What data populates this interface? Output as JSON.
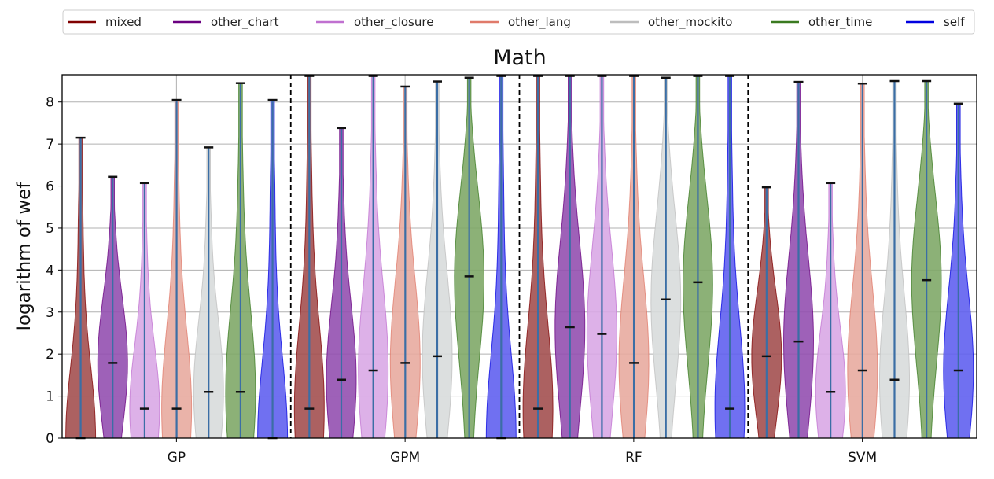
{
  "chart_data": {
    "type": "violin",
    "title": "Math",
    "xlabel": "",
    "ylabel": "logarithm of wef",
    "ylim": [
      0,
      8.65
    ],
    "yticks": [
      0,
      1,
      2,
      3,
      4,
      5,
      6,
      7,
      8
    ],
    "grid": true,
    "legend_position": "top",
    "groups": [
      "GP",
      "GPM",
      "RF",
      "SVM"
    ],
    "series": [
      {
        "name": "mixed",
        "color": "#800000",
        "fill": "#a35050",
        "max": [
          7.15,
          8.62,
          8.62,
          5.97
        ],
        "median": [
          0.0,
          0.7,
          0.7,
          1.95
        ]
      },
      {
        "name": "other_chart",
        "color": "#6a0080",
        "fill": "#9450b0",
        "max": [
          6.22,
          7.38,
          8.62,
          8.48
        ],
        "median": [
          1.79,
          1.39,
          2.64,
          2.3
        ]
      },
      {
        "name": "other_closure",
        "color": "#c070d0",
        "fill": "#d9a8e6",
        "max": [
          6.07,
          8.62,
          8.62,
          6.07
        ],
        "median": [
          0.7,
          1.61,
          2.48,
          1.1
        ]
      },
      {
        "name": "other_lang",
        "color": "#e07a6a",
        "fill": "#e8aba0",
        "max": [
          8.05,
          8.37,
          8.62,
          8.44
        ],
        "median": [
          0.7,
          1.79,
          1.79,
          1.61
        ]
      },
      {
        "name": "other_mockito",
        "color": "#bdbdbd",
        "fill": "#d8dbdc",
        "max": [
          6.92,
          8.49,
          8.58,
          8.5
        ],
        "median": [
          1.1,
          1.95,
          3.3,
          1.39
        ]
      },
      {
        "name": "other_time",
        "color": "#3a7a20",
        "fill": "#7fa868",
        "max": [
          8.45,
          8.58,
          8.62,
          8.5
        ],
        "median": [
          1.1,
          3.85,
          3.71,
          3.76
        ]
      },
      {
        "name": "self",
        "color": "#0000e0",
        "fill": "#6060f0",
        "max": [
          8.05,
          8.62,
          8.62,
          7.96
        ],
        "median": [
          0.0,
          0.0,
          0.7,
          1.61
        ]
      }
    ]
  }
}
